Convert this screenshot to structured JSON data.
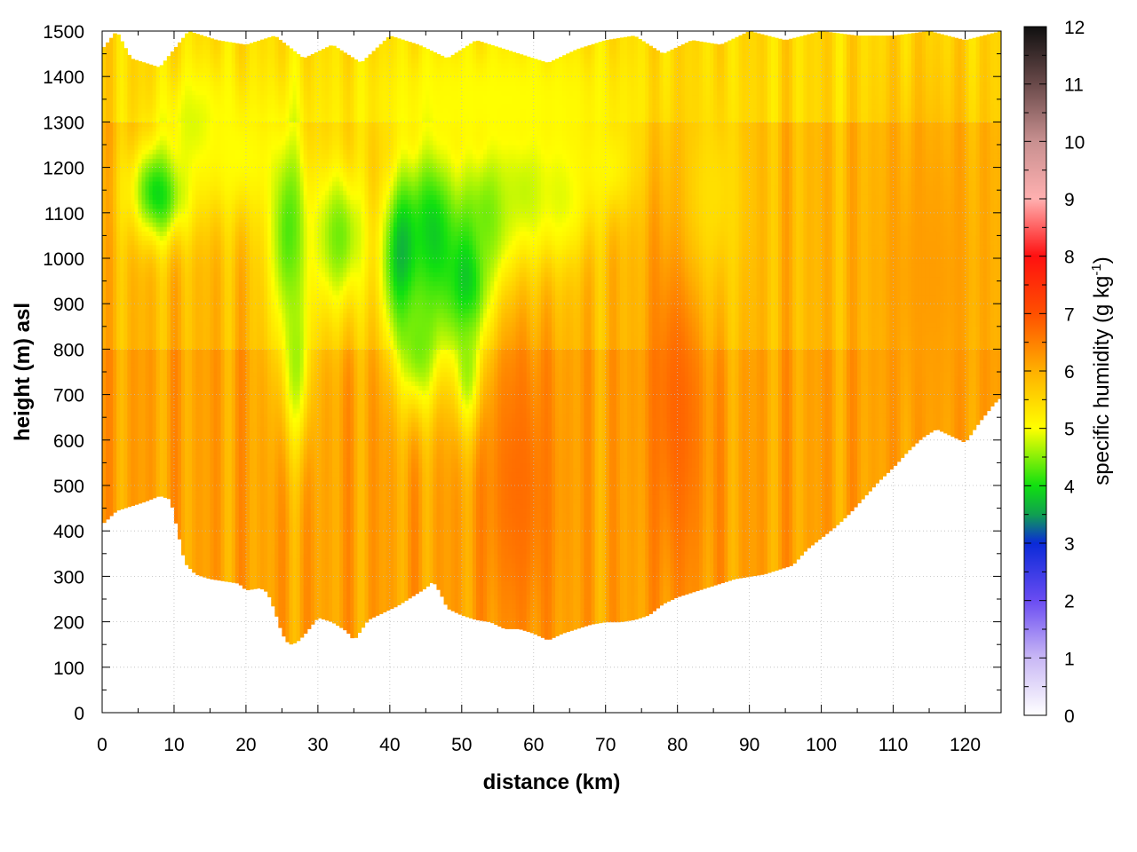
{
  "chart_data": {
    "type": "heatmap",
    "title": "",
    "xlabel": "distance (km)",
    "ylabel": "height (m) asl",
    "colorbar": {
      "label_main": "specific humidity (g kg",
      "label_sup": "-1",
      "label_close": ")",
      "range": [
        0,
        12
      ],
      "ticks": [
        "0",
        "1",
        "2",
        "3",
        "4",
        "5",
        "6",
        "7",
        "8",
        "9",
        "10",
        "11",
        "12"
      ],
      "stops": [
        {
          "v": 0,
          "c": "#ffffff"
        },
        {
          "v": 1,
          "c": "#c9b8f5"
        },
        {
          "v": 2,
          "c": "#6a4cf2"
        },
        {
          "v": 3,
          "c": "#0a2ad8"
        },
        {
          "v": 3.5,
          "c": "#10a050"
        },
        {
          "v": 4,
          "c": "#10e010"
        },
        {
          "v": 5,
          "c": "#ffff00"
        },
        {
          "v": 6,
          "c": "#ffb000"
        },
        {
          "v": 7,
          "c": "#ff5000"
        },
        {
          "v": 8,
          "c": "#ff1010"
        },
        {
          "v": 9,
          "c": "#ffb0b0"
        },
        {
          "v": 10,
          "c": "#c89090"
        },
        {
          "v": 11,
          "c": "#6a4a4a"
        },
        {
          "v": 12,
          "c": "#101010"
        }
      ]
    },
    "xlim": [
      0,
      125
    ],
    "ylim": [
      0,
      1500
    ],
    "xticks": [
      "0",
      "10",
      "20",
      "30",
      "40",
      "50",
      "60",
      "70",
      "80",
      "90",
      "100",
      "110",
      "120"
    ],
    "yticks": [
      "0",
      "100",
      "200",
      "300",
      "400",
      "500",
      "600",
      "700",
      "800",
      "900",
      "1000",
      "1100",
      "1200",
      "1300",
      "1400",
      "1500"
    ],
    "grid": true,
    "terrain_height": [
      [
        0,
        415
      ],
      [
        2,
        445
      ],
      [
        4,
        455
      ],
      [
        6,
        465
      ],
      [
        8,
        478
      ],
      [
        9.5,
        470
      ],
      [
        10.5,
        400
      ],
      [
        11.5,
        330
      ],
      [
        13,
        305
      ],
      [
        15,
        295
      ],
      [
        17,
        290
      ],
      [
        19,
        285
      ],
      [
        20,
        270
      ],
      [
        22,
        275
      ],
      [
        23,
        265
      ],
      [
        24,
        225
      ],
      [
        25,
        175
      ],
      [
        26,
        150
      ],
      [
        27,
        155
      ],
      [
        28,
        170
      ],
      [
        30,
        210
      ],
      [
        32,
        200
      ],
      [
        34,
        180
      ],
      [
        35,
        160
      ],
      [
        37,
        205
      ],
      [
        39,
        220
      ],
      [
        41,
        235
      ],
      [
        43,
        255
      ],
      [
        45,
        275
      ],
      [
        46,
        290
      ],
      [
        47,
        265
      ],
      [
        48,
        230
      ],
      [
        50,
        215
      ],
      [
        52,
        205
      ],
      [
        54,
        200
      ],
      [
        56,
        185
      ],
      [
        58,
        185
      ],
      [
        60,
        175
      ],
      [
        62,
        160
      ],
      [
        64,
        175
      ],
      [
        66,
        185
      ],
      [
        68,
        195
      ],
      [
        70,
        200
      ],
      [
        72,
        200
      ],
      [
        74,
        205
      ],
      [
        76,
        215
      ],
      [
        78,
        240
      ],
      [
        80,
        255
      ],
      [
        82,
        265
      ],
      [
        84,
        275
      ],
      [
        86,
        285
      ],
      [
        88,
        295
      ],
      [
        90,
        300
      ],
      [
        92,
        305
      ],
      [
        94,
        315
      ],
      [
        96,
        325
      ],
      [
        98,
        360
      ],
      [
        100,
        385
      ],
      [
        102,
        410
      ],
      [
        104,
        440
      ],
      [
        106,
        475
      ],
      [
        108,
        510
      ],
      [
        110,
        540
      ],
      [
        112,
        575
      ],
      [
        114,
        605
      ],
      [
        116,
        625
      ],
      [
        118,
        610
      ],
      [
        120,
        595
      ],
      [
        122,
        640
      ],
      [
        124,
        680
      ],
      [
        125,
        695
      ]
    ],
    "top_height": [
      [
        0,
        1460
      ],
      [
        2,
        1500
      ],
      [
        4,
        1440
      ],
      [
        8,
        1420
      ],
      [
        12,
        1500
      ],
      [
        16,
        1480
      ],
      [
        20,
        1470
      ],
      [
        24,
        1490
      ],
      [
        28,
        1440
      ],
      [
        32,
        1470
      ],
      [
        36,
        1430
      ],
      [
        40,
        1490
      ],
      [
        44,
        1470
      ],
      [
        48,
        1440
      ],
      [
        52,
        1480
      ],
      [
        56,
        1460
      ],
      [
        60,
        1440
      ],
      [
        62,
        1430
      ],
      [
        66,
        1460
      ],
      [
        70,
        1480
      ],
      [
        74,
        1490
      ],
      [
        78,
        1450
      ],
      [
        82,
        1480
      ],
      [
        86,
        1470
      ],
      [
        90,
        1500
      ],
      [
        95,
        1480
      ],
      [
        100,
        1500
      ],
      [
        105,
        1490
      ],
      [
        110,
        1490
      ],
      [
        115,
        1500
      ],
      [
        120,
        1480
      ],
      [
        125,
        1500
      ]
    ],
    "moisture_field": {
      "background_value": 5.9,
      "features": [
        {
          "x": 8,
          "y": 1150,
          "rx": 4,
          "ry": 110,
          "value": 3.8
        },
        {
          "x": 13,
          "y": 1290,
          "rx": 5,
          "ry": 140,
          "value": 4.8
        },
        {
          "x": 19,
          "y": 1230,
          "rx": 6,
          "ry": 160,
          "value": 5.0
        },
        {
          "x": 26,
          "y": 1050,
          "rx": 3,
          "ry": 260,
          "value": 4.2
        },
        {
          "x": 27,
          "y": 780,
          "rx": 2,
          "ry": 200,
          "value": 4.6
        },
        {
          "x": 33,
          "y": 1050,
          "rx": 4,
          "ry": 180,
          "value": 4.4
        },
        {
          "x": 42,
          "y": 1000,
          "rx": 3,
          "ry": 190,
          "value": 3.4
        },
        {
          "x": 46,
          "y": 1050,
          "rx": 4,
          "ry": 240,
          "value": 3.8
        },
        {
          "x": 44,
          "y": 820,
          "rx": 3,
          "ry": 160,
          "value": 4.4
        },
        {
          "x": 51,
          "y": 950,
          "rx": 3,
          "ry": 170,
          "value": 3.4
        },
        {
          "x": 51,
          "y": 760,
          "rx": 2,
          "ry": 150,
          "value": 4.4
        },
        {
          "x": 54,
          "y": 1100,
          "rx": 4,
          "ry": 180,
          "value": 4.2
        },
        {
          "x": 59,
          "y": 1150,
          "rx": 5,
          "ry": 170,
          "value": 4.6
        },
        {
          "x": 64,
          "y": 1150,
          "rx": 4,
          "ry": 150,
          "value": 4.8
        },
        {
          "x": 70,
          "y": 1200,
          "rx": 5,
          "ry": 120,
          "value": 5.1
        },
        {
          "x": 55,
          "y": 1350,
          "rx": 20,
          "ry": 140,
          "value": 5.0
        },
        {
          "x": 80,
          "y": 700,
          "rx": 4,
          "ry": 450,
          "value": 6.8
        },
        {
          "x": 58,
          "y": 500,
          "rx": 5,
          "ry": 350,
          "value": 6.7
        },
        {
          "x": 85,
          "y": 1150,
          "rx": 5,
          "ry": 250,
          "value": 5.4
        },
        {
          "x": 115,
          "y": 950,
          "rx": 8,
          "ry": 400,
          "value": 6.2
        }
      ]
    }
  }
}
